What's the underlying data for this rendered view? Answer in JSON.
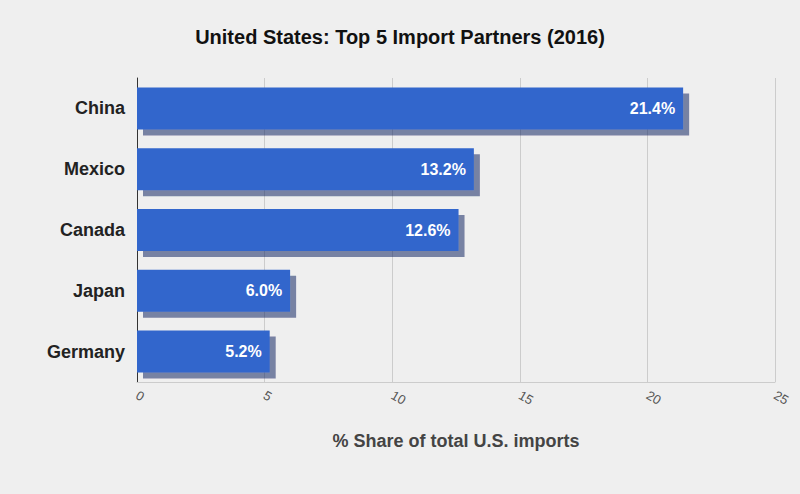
{
  "chart_data": {
    "type": "bar",
    "title": "United States: Top 5 Import Partners (2016)",
    "orientation": "horizontal",
    "categories": [
      "China",
      "Mexico",
      "Canada",
      "Japan",
      "Germany"
    ],
    "values": [
      21.4,
      13.2,
      12.6,
      6.0,
      5.2
    ],
    "value_labels": [
      "21.4%",
      "13.2%",
      "12.6%",
      "6.0%",
      "5.2%"
    ],
    "data_labels": true,
    "color": "#3366cc",
    "x_label": "% Share of total U.S. imports",
    "xlim": [
      0,
      25
    ],
    "xticks": [
      0,
      5,
      10,
      15,
      20,
      25
    ],
    "grid": true
  }
}
